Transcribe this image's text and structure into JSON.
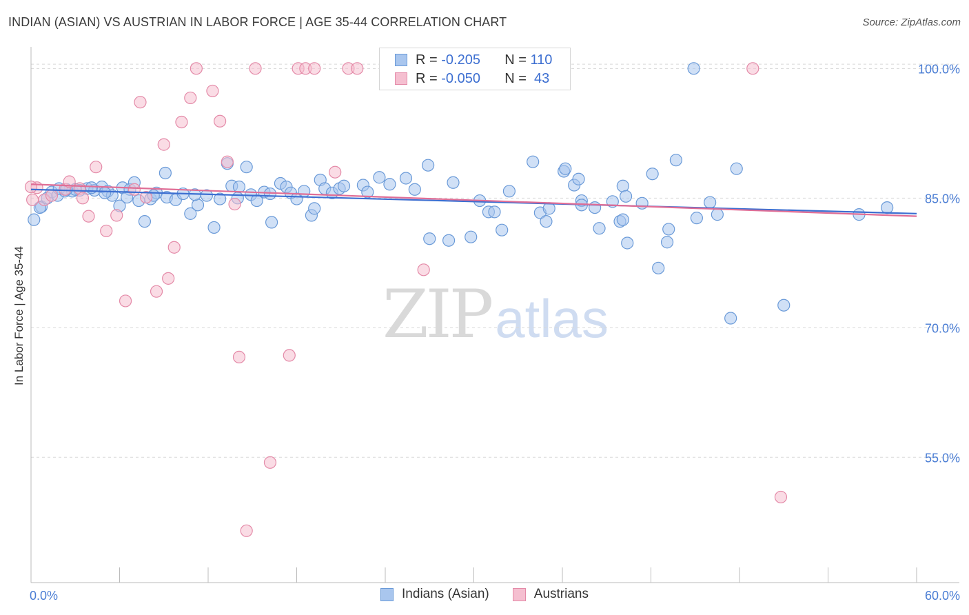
{
  "title": "INDIAN (ASIAN) VS AUSTRIAN IN LABOR FORCE | AGE 35-44 CORRELATION CHART",
  "source": "Source: ZipAtlas.com",
  "watermark": {
    "zip": "ZIP",
    "atlas": "atlas"
  },
  "legend_top": {
    "r_label": "R =",
    "n_label": "N =",
    "rows": [
      {
        "r": "-0.205",
        "n": "110"
      },
      {
        "r": "-0.050",
        "n": " 43"
      }
    ]
  },
  "colors": {
    "blue_fill": "#a9c6ee",
    "blue_stroke": "#6a9ad8",
    "blue_line": "#3d6fd1",
    "pink_fill": "#f5bfd0",
    "pink_stroke": "#e48aa8",
    "pink_line": "#e06e96",
    "grid": "#d8d8d8",
    "tick_label": "#4a7dd4"
  },
  "chart_data": {
    "type": "scatter",
    "title": "INDIAN (ASIAN) VS AUSTRIAN IN LABOR FORCE | AGE 35-44 CORRELATION CHART",
    "xlabel": "",
    "ylabel": "In Labor Force | Age 35-44",
    "xlim": [
      0,
      60
    ],
    "ylim": [
      40.5,
      102.5
    ],
    "x_tick_labels": [
      "0.0%",
      "60.0%"
    ],
    "y_ticks": [
      55,
      70,
      85,
      100
    ],
    "y_tick_labels": [
      "55.0%",
      "70.0%",
      "85.0%",
      "100.0%"
    ],
    "grid": true,
    "legend_placement": "bottom",
    "series": [
      {
        "name": "Indians (Asian)",
        "color": "#a9c6ee",
        "trend": [
          [
            0,
            86.0
          ],
          [
            60,
            83.2
          ]
        ],
        "points": [
          [
            0.2,
            82.5
          ],
          [
            0.7,
            84.0
          ],
          [
            1.1,
            85.0
          ],
          [
            1.4,
            85.7
          ],
          [
            1.8,
            85.3
          ],
          [
            2.3,
            85.8
          ],
          [
            2.8,
            85.8
          ],
          [
            3.3,
            85.9
          ],
          [
            3.8,
            86.1
          ],
          [
            4.3,
            85.9
          ],
          [
            4.8,
            86.3
          ],
          [
            5.2,
            85.8
          ],
          [
            5.5,
            85.3
          ],
          [
            6.0,
            84.1
          ],
          [
            6.2,
            86.2
          ],
          [
            6.7,
            86.0
          ],
          [
            7.0,
            86.8
          ],
          [
            7.3,
            84.7
          ],
          [
            7.7,
            82.3
          ],
          [
            8.1,
            84.9
          ],
          [
            8.5,
            85.6
          ],
          [
            9.1,
            87.9
          ],
          [
            9.2,
            85.1
          ],
          [
            9.8,
            84.8
          ],
          [
            10.3,
            85.5
          ],
          [
            10.8,
            83.2
          ],
          [
            11.3,
            84.2
          ],
          [
            11.9,
            85.3
          ],
          [
            12.4,
            81.6
          ],
          [
            12.8,
            84.9
          ],
          [
            13.3,
            89.0
          ],
          [
            13.6,
            86.4
          ],
          [
            14.1,
            86.3
          ],
          [
            14.6,
            88.6
          ],
          [
            14.9,
            85.4
          ],
          [
            15.3,
            84.7
          ],
          [
            15.8,
            85.7
          ],
          [
            16.3,
            82.2
          ],
          [
            16.9,
            86.7
          ],
          [
            17.3,
            86.3
          ],
          [
            17.6,
            85.6
          ],
          [
            18.0,
            84.9
          ],
          [
            18.5,
            85.8
          ],
          [
            19.0,
            83.0
          ],
          [
            19.2,
            83.8
          ],
          [
            19.6,
            87.1
          ],
          [
            19.9,
            86.1
          ],
          [
            20.4,
            85.6
          ],
          [
            20.9,
            86.1
          ],
          [
            21.2,
            86.4
          ],
          [
            22.5,
            86.5
          ],
          [
            22.8,
            85.7
          ],
          [
            23.6,
            87.4
          ],
          [
            24.3,
            86.6
          ],
          [
            25.4,
            87.3
          ],
          [
            26.0,
            86.0
          ],
          [
            26.9,
            88.8
          ],
          [
            28.6,
            86.8
          ],
          [
            27.0,
            80.3
          ],
          [
            28.3,
            80.1
          ],
          [
            29.8,
            80.5
          ],
          [
            30.4,
            84.7
          ],
          [
            31.0,
            83.4
          ],
          [
            31.4,
            83.4
          ],
          [
            31.9,
            81.3
          ],
          [
            32.4,
            85.8
          ],
          [
            34.0,
            89.2
          ],
          [
            34.5,
            83.3
          ],
          [
            34.9,
            82.3
          ],
          [
            35.1,
            83.8
          ],
          [
            36.1,
            88.1
          ],
          [
            36.2,
            88.4
          ],
          [
            36.8,
            86.5
          ],
          [
            37.1,
            87.2
          ],
          [
            38.5,
            81.5
          ],
          [
            37.3,
            84.7
          ],
          [
            37.3,
            84.2
          ],
          [
            38.2,
            83.9
          ],
          [
            39.4,
            84.6
          ],
          [
            39.9,
            82.3
          ],
          [
            40.1,
            82.5
          ],
          [
            40.4,
            79.8
          ],
          [
            40.1,
            86.4
          ],
          [
            40.3,
            85.2
          ],
          [
            41.4,
            84.4
          ],
          [
            42.1,
            87.8
          ],
          [
            43.1,
            79.9
          ],
          [
            43.2,
            81.4
          ],
          [
            43.7,
            89.4
          ],
          [
            42.5,
            76.9
          ],
          [
            45.1,
            82.7
          ],
          [
            47.8,
            88.4
          ],
          [
            47.4,
            71.1
          ],
          [
            51.0,
            72.6
          ],
          [
            56.1,
            83.1
          ],
          [
            58.0,
            83.9
          ],
          [
            44.9,
            100.0
          ],
          [
            46.0,
            84.5
          ],
          [
            46.5,
            83.1
          ],
          [
            1.9,
            86.1
          ],
          [
            3.0,
            86.0
          ],
          [
            4.1,
            86.2
          ],
          [
            5.0,
            85.6
          ],
          [
            6.5,
            85.1
          ],
          [
            8.3,
            85.3
          ],
          [
            11.1,
            85.4
          ],
          [
            14.0,
            85.0
          ],
          [
            16.2,
            85.5
          ],
          [
            0.6,
            83.9
          ],
          [
            2.4,
            86.0
          ]
        ]
      },
      {
        "name": "Austrians",
        "color": "#f5bfd0",
        "trend": [
          [
            0,
            86.6
          ],
          [
            60,
            82.9
          ]
        ],
        "points": [
          [
            0.1,
            84.8
          ],
          [
            0.4,
            86.2
          ],
          [
            0.9,
            84.8
          ],
          [
            1.4,
            85.3
          ],
          [
            2.3,
            86.0
          ],
          [
            2.6,
            86.9
          ],
          [
            3.3,
            86.1
          ],
          [
            3.5,
            85.0
          ],
          [
            3.9,
            82.9
          ],
          [
            4.4,
            88.6
          ],
          [
            5.1,
            81.2
          ],
          [
            5.8,
            83.0
          ],
          [
            6.4,
            73.1
          ],
          [
            7.0,
            86.0
          ],
          [
            7.4,
            96.1
          ],
          [
            7.8,
            85.1
          ],
          [
            8.5,
            74.2
          ],
          [
            9.0,
            91.2
          ],
          [
            9.3,
            75.7
          ],
          [
            9.7,
            79.3
          ],
          [
            10.2,
            93.8
          ],
          [
            10.8,
            96.6
          ],
          [
            11.2,
            100.0
          ],
          [
            12.3,
            97.4
          ],
          [
            12.8,
            93.9
          ],
          [
            13.3,
            89.2
          ],
          [
            13.8,
            84.3
          ],
          [
            14.1,
            66.6
          ],
          [
            14.6,
            46.5
          ],
          [
            15.2,
            100.0
          ],
          [
            16.2,
            54.4
          ],
          [
            17.5,
            66.8
          ],
          [
            18.1,
            100.0
          ],
          [
            18.6,
            100.0
          ],
          [
            19.2,
            100.0
          ],
          [
            20.6,
            88.0
          ],
          [
            21.5,
            100.0
          ],
          [
            22.1,
            100.0
          ],
          [
            26.1,
            100.0
          ],
          [
            26.6,
            76.7
          ],
          [
            48.9,
            100.0
          ],
          [
            50.8,
            50.4
          ],
          [
            0.0,
            86.3
          ]
        ]
      }
    ]
  }
}
